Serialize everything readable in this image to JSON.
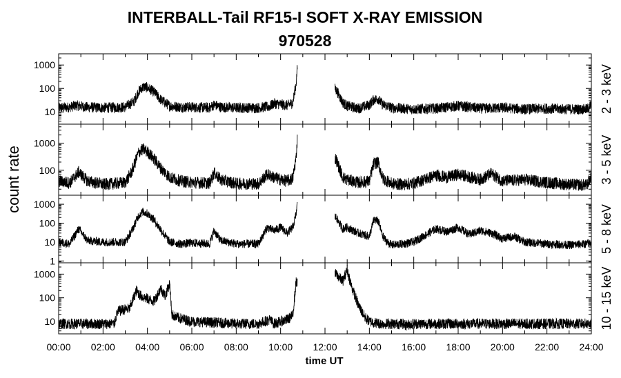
{
  "chart_data": {
    "type": "line",
    "title": "INTERBALL-Tail RF15-I SOFT X-RAY EMISSION",
    "subtitle": "970528",
    "xlabel": "time UT",
    "ylabel": "count rate",
    "x_ticks": [
      "00:00",
      "02:00",
      "04:00",
      "06:00",
      "08:00",
      "10:00",
      "12:00",
      "14:00",
      "16:00",
      "18:00",
      "20:00",
      "22:00",
      "24:00"
    ],
    "xlim": [
      0,
      24
    ],
    "y_scale": "log",
    "data_gap_hours": [
      10.75,
      12.45
    ],
    "panels": [
      {
        "name": "2 - 3 keV",
        "ylim": [
          3,
          3000
        ],
        "y_ticks": [
          10,
          100,
          1000
        ],
        "y_tick_labels": [
          "10",
          "100",
          "1000"
        ],
        "x": [
          0,
          0.5,
          0.8,
          1.2,
          2.0,
          3.0,
          3.4,
          3.6,
          3.8,
          4.0,
          4.3,
          4.6,
          5.0,
          5.5,
          6.0,
          6.8,
          7.0,
          7.3,
          8.0,
          9.0,
          9.5,
          9.7,
          10.0,
          10.3,
          10.55,
          10.7,
          10.78,
          12.5,
          12.8,
          13.0,
          13.5,
          14.0,
          14.2,
          14.4,
          14.6,
          14.8,
          15.0,
          15.5,
          16.0,
          17.0,
          18.0,
          19.0,
          20.0,
          21.0,
          22.0,
          23.0,
          23.8,
          24.0
        ],
        "y": [
          15,
          16,
          19,
          16,
          15,
          16,
          28,
          75,
          115,
          110,
          70,
          33,
          18,
          16,
          16,
          15,
          20,
          16,
          15,
          15,
          17,
          23,
          21,
          19,
          25,
          160,
          2000,
          90,
          25,
          18,
          14,
          20,
          33,
          36,
          20,
          18,
          15,
          14,
          13,
          14,
          18,
          14,
          15,
          13,
          14,
          13,
          13,
          20
        ]
      },
      {
        "name": "3 - 5 keV",
        "ylim": [
          12,
          5000
        ],
        "y_ticks": [
          100,
          1000
        ],
        "y_tick_labels": [
          "100",
          "1000"
        ],
        "x": [
          0,
          0.5,
          0.9,
          1.3,
          2.0,
          3.0,
          3.3,
          3.6,
          3.8,
          4.0,
          4.3,
          4.6,
          5.0,
          5.5,
          6.0,
          6.8,
          7.0,
          7.3,
          8.0,
          9.0,
          9.4,
          9.7,
          10.0,
          10.3,
          10.55,
          10.7,
          10.78,
          12.5,
          12.8,
          13.0,
          13.5,
          14.0,
          14.2,
          14.4,
          14.6,
          14.8,
          15.0,
          15.5,
          16.0,
          17.0,
          17.5,
          18.0,
          19.0,
          19.5,
          20.0,
          21.0,
          22.0,
          23.0,
          23.8,
          24.0
        ],
        "y": [
          40,
          34,
          85,
          40,
          30,
          35,
          90,
          450,
          600,
          480,
          260,
          120,
          55,
          40,
          36,
          33,
          80,
          45,
          32,
          32,
          70,
          55,
          45,
          40,
          50,
          300,
          3500,
          250,
          55,
          45,
          35,
          40,
          180,
          190,
          50,
          40,
          32,
          30,
          33,
          65,
          55,
          70,
          45,
          75,
          40,
          45,
          35,
          30,
          28,
          60
        ]
      },
      {
        "name": "5 - 8 keV",
        "ylim": [
          0.8,
          3000
        ],
        "y_ticks": [
          1,
          10,
          100,
          1000
        ],
        "y_tick_labels": [
          "1",
          "10",
          "100",
          "1000"
        ],
        "x": [
          0,
          0.5,
          0.9,
          1.3,
          2.0,
          3.0,
          3.3,
          3.6,
          3.8,
          4.0,
          4.3,
          4.6,
          5.0,
          5.5,
          6.0,
          6.8,
          7.0,
          7.3,
          8.0,
          9.0,
          9.4,
          9.7,
          10.0,
          10.3,
          10.55,
          10.7,
          10.78,
          12.5,
          12.8,
          13.0,
          13.5,
          14.0,
          14.2,
          14.4,
          14.6,
          14.8,
          15.0,
          15.5,
          16.0,
          17.0,
          17.5,
          18.0,
          18.5,
          19.0,
          19.5,
          20.0,
          20.5,
          21.0,
          22.0,
          23.0,
          23.8,
          24.0
        ],
        "y": [
          10,
          8,
          50,
          12,
          10,
          10,
          40,
          250,
          400,
          320,
          150,
          45,
          10,
          8,
          9,
          8,
          40,
          12,
          8,
          8,
          60,
          40,
          60,
          30,
          60,
          300,
          2200,
          200,
          50,
          60,
          30,
          20,
          150,
          130,
          20,
          10,
          7,
          8,
          10,
          50,
          35,
          60,
          25,
          40,
          30,
          15,
          20,
          10,
          8,
          7,
          8,
          10
        ]
      },
      {
        "name": "10 - 15 keV",
        "ylim": [
          3,
          3000
        ],
        "y_ticks": [
          10,
          100,
          1000
        ],
        "y_tick_labels": [
          "10",
          "100",
          "1000"
        ],
        "x": [
          0,
          1.0,
          2.0,
          2.5,
          2.65,
          2.8,
          3.2,
          3.5,
          3.7,
          4.0,
          4.3,
          4.6,
          4.8,
          5.0,
          5.1,
          5.3,
          6.0,
          7.0,
          8.0,
          9.0,
          9.5,
          9.7,
          10.0,
          10.3,
          10.55,
          10.7,
          10.78,
          12.5,
          12.8,
          13.0,
          13.2,
          13.5,
          13.8,
          14.0,
          14.5,
          15.0,
          15.5,
          15.6,
          16.0,
          18.0,
          20.0,
          22.0,
          24.0
        ],
        "y": [
          8,
          8,
          8,
          8,
          25,
          30,
          35,
          200,
          120,
          90,
          70,
          250,
          120,
          400,
          20,
          15,
          10,
          9,
          8,
          8,
          12,
          8,
          10,
          12,
          18,
          500,
          350,
          1000,
          500,
          1500,
          300,
          50,
          15,
          10,
          8,
          8,
          8,
          7,
          8,
          8,
          8,
          8,
          8
        ]
      }
    ]
  }
}
